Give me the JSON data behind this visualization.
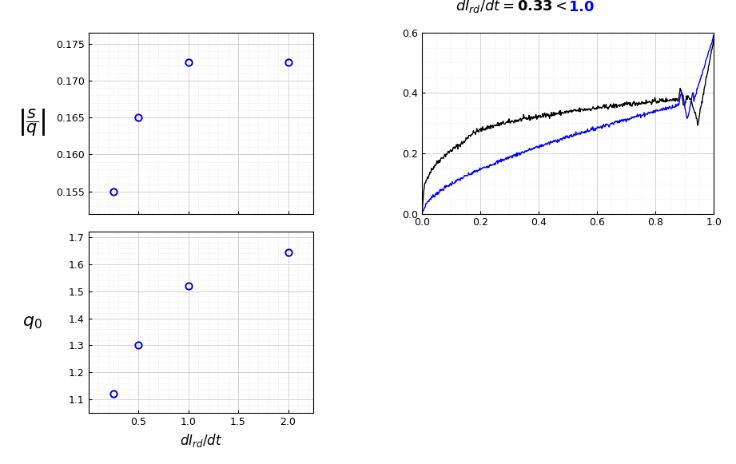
{
  "left_top": {
    "x": [
      0.25,
      0.5,
      1.0,
      2.0
    ],
    "y": [
      0.155,
      0.165,
      0.1725,
      0.1725
    ],
    "ylim": [
      0.152,
      0.1765
    ],
    "yticks": [
      0.155,
      0.16,
      0.165,
      0.17,
      0.175
    ],
    "xticks": [
      0.5,
      1.0,
      1.5,
      2.0
    ],
    "xlim": [
      0.0,
      2.25
    ],
    "marker_color": "#0000cc",
    "markersize": 6
  },
  "left_bot": {
    "x": [
      0.25,
      0.5,
      1.0,
      2.0
    ],
    "y": [
      1.12,
      1.3,
      1.52,
      1.645
    ],
    "ylim": [
      1.05,
      1.72
    ],
    "yticks": [
      1.1,
      1.2,
      1.3,
      1.4,
      1.5,
      1.6,
      1.7
    ],
    "xticks": [
      0.5,
      1.0,
      1.5,
      2.0
    ],
    "xlim": [
      0.0,
      2.25
    ],
    "marker_color": "#0000cc",
    "markersize": 6,
    "xlabel": "$dI_{rd}/dt$"
  },
  "right": {
    "xlim": [
      0.0,
      1.0
    ],
    "ylim": [
      0.0,
      0.6
    ],
    "xticks": [
      0.0,
      0.2,
      0.4,
      0.6,
      0.8,
      1.0
    ],
    "yticks": [
      0.0,
      0.2,
      0.4,
      0.6
    ]
  },
  "grid_color": "#cccccc",
  "grid_minor_color": "#dddddd",
  "background_color": "#ffffff"
}
